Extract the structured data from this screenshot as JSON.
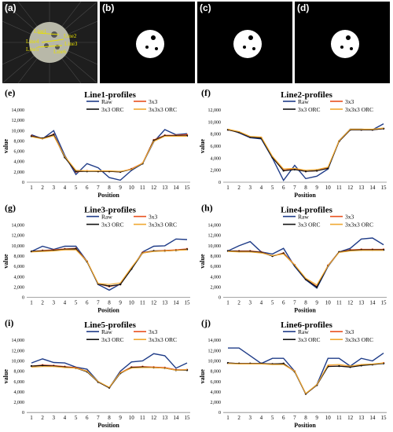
{
  "image_panels": {
    "labels": [
      "(a)",
      "(b)",
      "(c)",
      "(d)"
    ],
    "line_labels": [
      "Line1",
      "Line2",
      "Line3",
      "Line4",
      "Line5",
      "Line6"
    ],
    "line_color": "#e8e000"
  },
  "colors": {
    "Raw": "#1f3c88",
    "3x3": "#e8501e",
    "3x3 ORC": "#111111",
    "3x3x3 ORC": "#f0a830"
  },
  "chart_data": [
    {
      "panel": "(e)",
      "type": "line",
      "title": "Line1-profiles",
      "xlabel": "Position",
      "ylabel": "value",
      "x": [
        1,
        2,
        3,
        4,
        5,
        6,
        7,
        8,
        9,
        10,
        11,
        12,
        13,
        14,
        15
      ],
      "ylim": [
        0,
        14000
      ],
      "yticks": [
        "0",
        "2,000",
        "4,000",
        "6,000",
        "8,000",
        "10,000",
        "12,000",
        "14,000"
      ],
      "grid": false,
      "legend": "top",
      "series": [
        {
          "name": "Raw",
          "values": [
            9200,
            8400,
            10000,
            5200,
            1500,
            3600,
            2800,
            900,
            400,
            2300,
            3600,
            7800,
            10200,
            9200,
            9400
          ]
        },
        {
          "name": "3x3",
          "values": [
            9000,
            8500,
            9300,
            4900,
            2000,
            2200,
            2100,
            2100,
            2000,
            2600,
            3700,
            8200,
            9100,
            9100,
            9200
          ]
        },
        {
          "name": "3x3 ORC",
          "values": [
            8900,
            8500,
            9200,
            4800,
            2100,
            2100,
            2100,
            2100,
            2000,
            2500,
            3600,
            8100,
            9000,
            9000,
            9000
          ]
        },
        {
          "name": "3x3x3 ORC",
          "values": [
            8800,
            8400,
            9000,
            5000,
            2300,
            2200,
            2200,
            2200,
            2100,
            2500,
            3700,
            7900,
            8900,
            8900,
            8900
          ]
        }
      ]
    },
    {
      "panel": "(f)",
      "type": "line",
      "title": "Line2-profiles",
      "xlabel": "Position",
      "ylabel": "value",
      "x": [
        1,
        2,
        3,
        4,
        5,
        6,
        7,
        8,
        9,
        10,
        11,
        12,
        13,
        14,
        15
      ],
      "ylim": [
        0,
        12000
      ],
      "yticks": [
        "0",
        "2,000",
        "4,000",
        "6,000",
        "8,000",
        "10,000",
        "12,000"
      ],
      "grid": false,
      "legend": "top",
      "series": [
        {
          "name": "Raw",
          "values": [
            8800,
            8200,
            7400,
            7200,
            4000,
            300,
            2800,
            600,
            1000,
            2200,
            6900,
            8800,
            8800,
            8700,
            9700
          ]
        },
        {
          "name": "3x3",
          "values": [
            8700,
            8300,
            7500,
            7400,
            4200,
            2000,
            2200,
            1800,
            1900,
            2400,
            6800,
            8700,
            8700,
            8700,
            8900
          ]
        },
        {
          "name": "3x3 ORC",
          "values": [
            8700,
            8300,
            7500,
            7300,
            4100,
            1900,
            2100,
            1800,
            1900,
            2300,
            6800,
            8700,
            8700,
            8700,
            8900
          ]
        },
        {
          "name": "3x3x3 ORC",
          "values": [
            8800,
            8400,
            7600,
            7500,
            4300,
            2200,
            2300,
            2000,
            2100,
            2500,
            6900,
            8800,
            8800,
            8800,
            9000
          ]
        }
      ]
    },
    {
      "panel": "(g)",
      "type": "line",
      "title": "Line3-profiles",
      "xlabel": "Position",
      "ylabel": "value",
      "x": [
        1,
        2,
        3,
        4,
        5,
        6,
        7,
        8,
        9,
        10,
        11,
        12,
        13,
        14,
        15
      ],
      "ylim": [
        0,
        14000
      ],
      "yticks": [
        "0",
        "2,000",
        "4,000",
        "6,000",
        "8,000",
        "10,000",
        "12,000",
        "14,000"
      ],
      "grid": false,
      "legend": "top",
      "series": [
        {
          "name": "Raw",
          "values": [
            8900,
            9900,
            9300,
            9900,
            9900,
            7000,
            2500,
            1400,
            2600,
            5500,
            8800,
            9900,
            10000,
            11300,
            11200
          ]
        },
        {
          "name": "3x3",
          "values": [
            8900,
            9100,
            9200,
            9400,
            9500,
            7000,
            2600,
            2100,
            2500,
            5600,
            8700,
            9000,
            9100,
            9200,
            9400
          ]
        },
        {
          "name": "3x3 ORC",
          "values": [
            8900,
            9000,
            9100,
            9300,
            9400,
            6900,
            2600,
            2200,
            2500,
            5500,
            8600,
            9000,
            9000,
            9100,
            9300
          ]
        },
        {
          "name": "3x3x3 ORC",
          "values": [
            8800,
            8900,
            9000,
            9200,
            9200,
            7000,
            2700,
            2500,
            2800,
            5800,
            8600,
            8900,
            9000,
            9100,
            9200
          ]
        }
      ]
    },
    {
      "panel": "(h)",
      "type": "line",
      "title": "Line4-profiles",
      "xlabel": "Position",
      "ylabel": "value",
      "x": [
        1,
        2,
        3,
        4,
        5,
        6,
        7,
        8,
        9,
        10,
        11,
        12,
        13,
        14,
        15
      ],
      "ylim": [
        0,
        14000
      ],
      "yticks": [
        "0",
        "2,000",
        "4,000",
        "6,000",
        "8,000",
        "10,000",
        "12,000",
        "14,000"
      ],
      "grid": false,
      "legend": "top",
      "series": [
        {
          "name": "Raw",
          "values": [
            9000,
            10000,
            10800,
            8800,
            8400,
            9500,
            6000,
            3400,
            1800,
            6000,
            8800,
            9500,
            11300,
            11500,
            10200
          ]
        },
        {
          "name": "3x3",
          "values": [
            9000,
            9000,
            9000,
            8800,
            8000,
            8600,
            6300,
            3500,
            2100,
            6200,
            8800,
            9200,
            9300,
            9300,
            9300
          ]
        },
        {
          "name": "3x3 ORC",
          "values": [
            9000,
            8900,
            8900,
            8700,
            8000,
            8500,
            6200,
            3500,
            2000,
            6100,
            8800,
            9100,
            9200,
            9200,
            9200
          ]
        },
        {
          "name": "3x3x3 ORC",
          "values": [
            8900,
            8800,
            8800,
            8600,
            8100,
            8400,
            6300,
            3700,
            2400,
            6100,
            8700,
            9000,
            9100,
            9100,
            9100
          ]
        }
      ]
    },
    {
      "panel": "(i)",
      "type": "line",
      "title": "Line5-profiles",
      "xlabel": "Position",
      "ylabel": "value",
      "x": [
        1,
        2,
        3,
        4,
        5,
        6,
        7,
        8,
        9,
        10,
        11,
        12,
        13,
        14,
        15
      ],
      "ylim": [
        0,
        14000
      ],
      "yticks": [
        "0",
        "2,000",
        "4,000",
        "6,000",
        "8,000",
        "10,000",
        "12,000",
        "14,000"
      ],
      "grid": false,
      "legend": "top",
      "series": [
        {
          "name": "Raw",
          "values": [
            9600,
            10400,
            9700,
            9600,
            8800,
            8400,
            6000,
            4800,
            8000,
            9800,
            10000,
            11400,
            11000,
            8600,
            9600
          ]
        },
        {
          "name": "3x3",
          "values": [
            9000,
            9200,
            9100,
            8900,
            8700,
            8000,
            5900,
            4800,
            7700,
            8800,
            8900,
            8800,
            8700,
            8300,
            8300
          ]
        },
        {
          "name": "3x3 ORC",
          "values": [
            9000,
            9100,
            9000,
            8800,
            8600,
            7900,
            5900,
            4800,
            7600,
            8700,
            8800,
            8700,
            8600,
            8200,
            8200
          ]
        },
        {
          "name": "3x3x3 ORC",
          "values": [
            8800,
            8900,
            8900,
            8700,
            8600,
            8000,
            6000,
            4900,
            7700,
            8600,
            8700,
            8700,
            8600,
            8200,
            8300
          ]
        }
      ]
    },
    {
      "panel": "(j)",
      "type": "line",
      "title": "Line6-profiles",
      "xlabel": "Position",
      "ylabel": "value",
      "x": [
        1,
        2,
        3,
        4,
        5,
        6,
        7,
        8,
        9,
        10,
        11,
        12,
        13,
        14,
        15
      ],
      "ylim": [
        0,
        14000
      ],
      "yticks": [
        "0",
        "2,000",
        "4,000",
        "6,000",
        "8,000",
        "10,000",
        "12,000",
        "14,000"
      ],
      "grid": false,
      "legend": "top",
      "series": [
        {
          "name": "Raw",
          "values": [
            12500,
            12500,
            11000,
            9500,
            10500,
            10500,
            8000,
            3600,
            5400,
            10500,
            10500,
            9000,
            10500,
            10000,
            11500
          ]
        },
        {
          "name": "3x3",
          "values": [
            9600,
            9500,
            9500,
            9500,
            9400,
            9500,
            8000,
            3600,
            5300,
            9000,
            9000,
            8900,
            9200,
            9300,
            9600
          ]
        },
        {
          "name": "3x3 ORC",
          "values": [
            9600,
            9500,
            9500,
            9500,
            9400,
            9500,
            7900,
            3600,
            5300,
            8900,
            9000,
            8800,
            9100,
            9300,
            9500
          ]
        },
        {
          "name": "3x3x3 ORC",
          "values": [
            9500,
            9400,
            9400,
            9400,
            9300,
            9300,
            8000,
            3700,
            5400,
            9200,
            9300,
            9000,
            9300,
            9400,
            9600
          ]
        }
      ]
    }
  ]
}
